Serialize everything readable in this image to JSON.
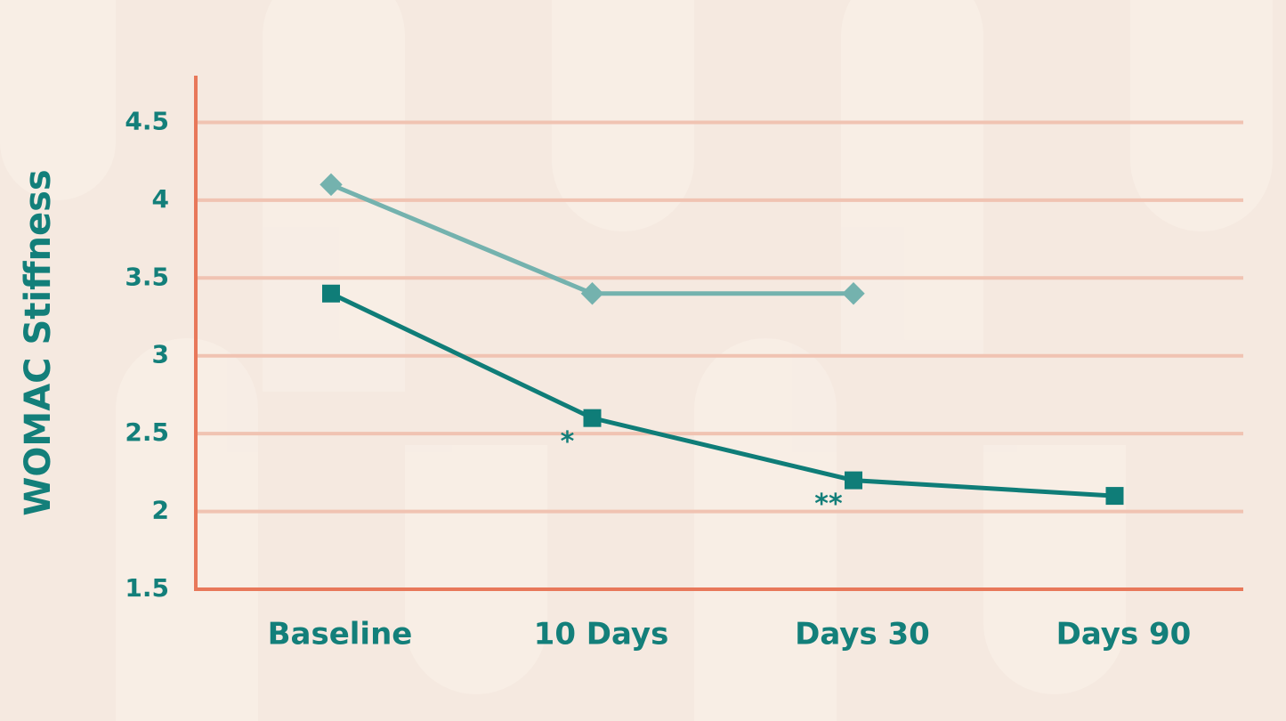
{
  "chart_data": {
    "type": "line",
    "y_label": "WOMAC Stiffness",
    "categories": [
      "Baseline",
      "10 Days",
      "Days 30",
      "Days 90"
    ],
    "series": [
      {
        "color": "#74b2ae",
        "marker": "diamond",
        "values": [
          4.1,
          3.4,
          3.4,
          null
        ]
      },
      {
        "color": "#0f7d78",
        "marker": "square",
        "values": [
          3.4,
          2.6,
          2.2,
          2.1
        ]
      }
    ],
    "annotations": [
      "*",
      "**"
    ],
    "ylim": [
      1.5,
      4.8
    ],
    "yticks": [
      1.5,
      2,
      2.5,
      3,
      3.5,
      4,
      4.5
    ],
    "grid": true
  }
}
